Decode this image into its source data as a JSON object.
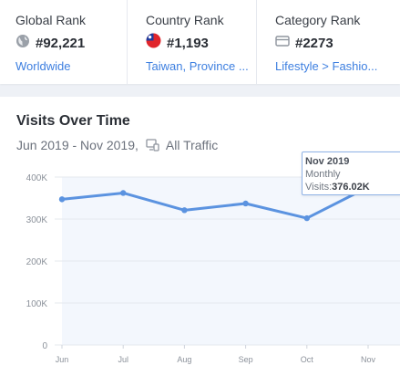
{
  "ranks": [
    {
      "label": "Global Rank",
      "icon": "globe-icon",
      "value": "#92,221",
      "link": "Worldwide"
    },
    {
      "label": "Country Rank",
      "icon": "taiwan-flag-icon",
      "value": "#1,193",
      "link": "Taiwan, Province ..."
    },
    {
      "label": "Category Rank",
      "icon": "category-icon",
      "value": "#2273",
      "link": "Lifestyle > Fashio..."
    }
  ],
  "visits": {
    "title": "Visits Over Time",
    "date_range": "Jun 2019 - Nov 2019,",
    "traffic_icon": "all-traffic-icon",
    "traffic_label": "All Traffic",
    "tooltip": {
      "date": "Nov 2019",
      "period": "Monthly",
      "value_label": "Visits:",
      "value": "376.02K"
    }
  },
  "colors": {
    "accent": "#3d7fe0",
    "line": "#5b93e0",
    "area": "#f3f7fd"
  },
  "chart_data": {
    "type": "line",
    "title": "Visits Over Time",
    "x": [
      "Jun",
      "Jul",
      "Aug",
      "Sep",
      "Oct",
      "Nov"
    ],
    "series": [
      {
        "values": [
          347000,
          362000,
          321000,
          337000,
          302000,
          376020
        ]
      }
    ],
    "ylim": [
      0,
      400000
    ],
    "yticks": [
      0,
      100000,
      200000,
      300000,
      400000
    ],
    "ytick_labels": [
      "0",
      "100K",
      "200K",
      "300K",
      "400K"
    ],
    "grid": true,
    "legend": "none"
  }
}
